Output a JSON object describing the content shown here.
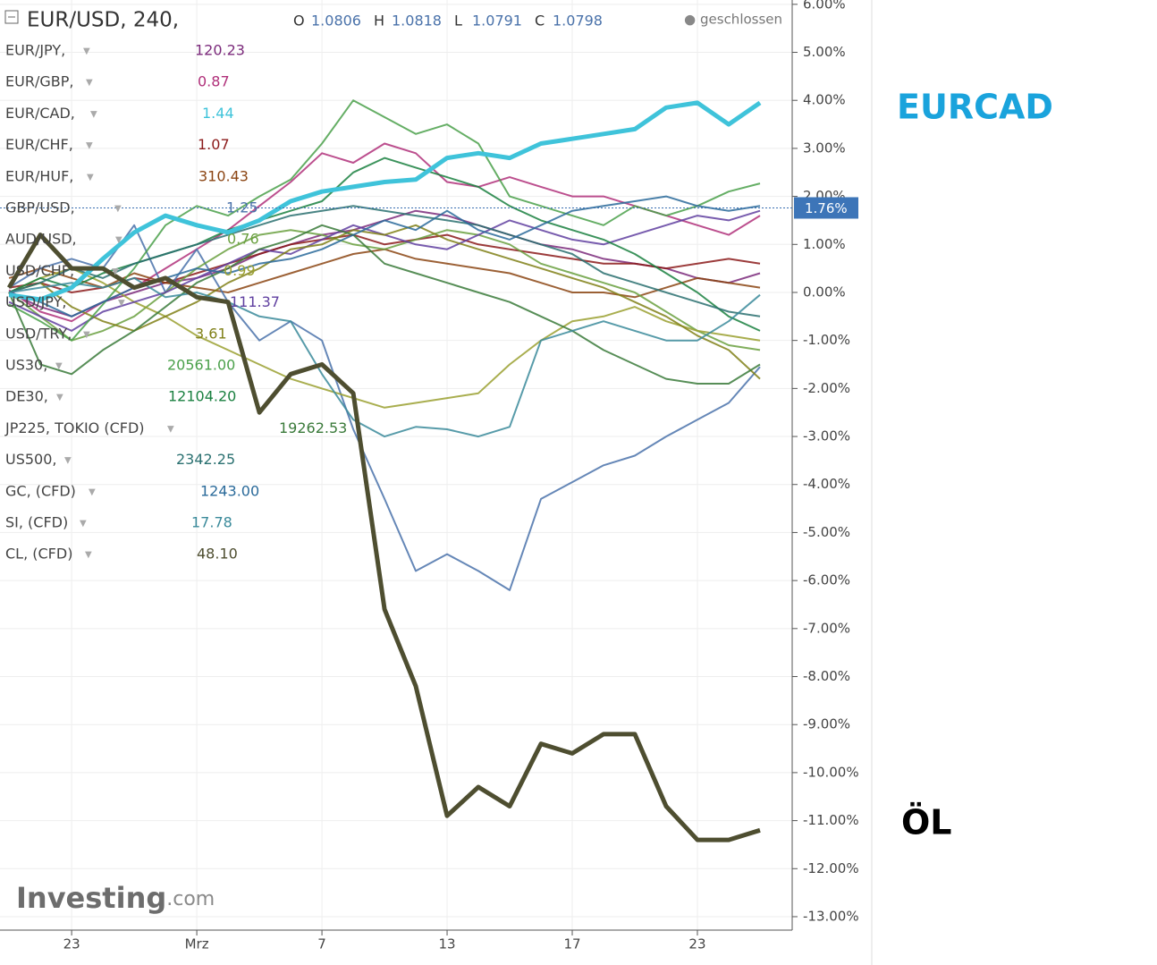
{
  "chart_data": {
    "type": "line",
    "header": {
      "symbol": "EUR/USD, 240,",
      "ohlc": [
        {
          "label": "O",
          "value": "1.0806"
        },
        {
          "label": "H",
          "value": "1.0818"
        },
        {
          "label": "L",
          "value": "1.0791"
        },
        {
          "label": "C",
          "value": "1.0798"
        }
      ],
      "status": "geschlossen"
    },
    "x": [
      -2,
      -1,
      0,
      1,
      2,
      3,
      4,
      5,
      6,
      7,
      8,
      9,
      10,
      11,
      12,
      13,
      14,
      15,
      16,
      17,
      18,
      19,
      20,
      21,
      22
    ],
    "xlim": [
      -2.29,
      23.03
    ],
    "xticks": [
      {
        "value": 0,
        "label": "23"
      },
      {
        "value": 4,
        "label": "Mrz"
      },
      {
        "value": 8,
        "label": "7"
      },
      {
        "value": 12,
        "label": "13"
      },
      {
        "value": 16,
        "label": "17"
      },
      {
        "value": 20,
        "label": "23"
      }
    ],
    "ylim": [
      -13.28,
      6.09
    ],
    "yticks": [
      {
        "value": 6,
        "label": "6.00%"
      },
      {
        "value": 5,
        "label": "5.00%"
      },
      {
        "value": 4,
        "label": "4.00%"
      },
      {
        "value": 3,
        "label": "3.00%"
      },
      {
        "value": 2,
        "label": "2.00%"
      },
      {
        "value": 1,
        "label": "1.00%"
      },
      {
        "value": 0,
        "label": "0.00%"
      },
      {
        "value": -1,
        "label": "-1.00%"
      },
      {
        "value": -2,
        "label": "-2.00%"
      },
      {
        "value": -3,
        "label": "-3.00%"
      },
      {
        "value": -4,
        "label": "-4.00%"
      },
      {
        "value": -5,
        "label": "-5.00%"
      },
      {
        "value": -6,
        "label": "-6.00%"
      },
      {
        "value": -7,
        "label": "-7.00%"
      },
      {
        "value": -8,
        "label": "-8.00%"
      },
      {
        "value": -9,
        "label": "-9.00%"
      },
      {
        "value": -10,
        "label": "-10.00%"
      },
      {
        "value": -11,
        "label": "-11.00%"
      },
      {
        "value": -12,
        "label": "-12.00%"
      },
      {
        "value": -13,
        "label": "-13.00%"
      }
    ],
    "grid": true,
    "current": {
      "value": 1.76,
      "label": "1.76%"
    },
    "annotations": [
      {
        "text": "EURCAD",
        "color": "#1aa3dc"
      },
      {
        "text": "ÖL",
        "color": "#000000"
      }
    ],
    "watermark": [
      "Investing",
      ".com"
    ],
    "series": [
      {
        "name": "EUR/JPY,",
        "last": "120.23",
        "color": "#7b2a7b",
        "values": [
          0,
          -0.3,
          -0.5,
          -0.2,
          0,
          0.2,
          0.3,
          0.5,
          0.8,
          1.0,
          1.2,
          1.3,
          1.5,
          1.7,
          1.6,
          1.4,
          1.2,
          1.0,
          0.9,
          0.7,
          0.6,
          0.5,
          0.3,
          0.2,
          0.4
        ]
      },
      {
        "name": "EUR/GBP,",
        "last": "0.87",
        "color": "#b0307a",
        "values": [
          0.05,
          -0.4,
          -0.6,
          -0.2,
          0.1,
          0.5,
          0.9,
          1.3,
          1.8,
          2.3,
          2.9,
          2.7,
          3.1,
          2.9,
          2.3,
          2.2,
          2.4,
          2.2,
          2.0,
          2.0,
          1.8,
          1.6,
          1.4,
          1.2,
          1.6
        ]
      },
      {
        "name": "EUR/CAD,",
        "last": "1.44",
        "color": "#3fc3da",
        "values": [
          -0.05,
          -0.15,
          0.1,
          0.7,
          1.25,
          1.6,
          1.4,
          1.25,
          1.5,
          1.9,
          2.1,
          2.2,
          2.3,
          2.35,
          2.8,
          2.9,
          2.8,
          3.1,
          3.2,
          3.3,
          3.4,
          3.85,
          3.95,
          3.5,
          3.95
        ]
      },
      {
        "name": "EUR/CHF,",
        "last": "1.07",
        "color": "#8b1a1a",
        "values": [
          0.1,
          0.2,
          0,
          0.1,
          0.3,
          0.2,
          0.4,
          0.6,
          0.8,
          1.0,
          1.1,
          1.2,
          1.0,
          1.1,
          1.2,
          1.0,
          0.9,
          0.8,
          0.7,
          0.6,
          0.6,
          0.5,
          0.6,
          0.7,
          0.6
        ]
      },
      {
        "name": "EUR/HUF,",
        "last": "310.43",
        "color": "#8b4513",
        "values": [
          0.3,
          0.5,
          0.3,
          0.1,
          0.4,
          0.2,
          0.1,
          0,
          0.2,
          0.4,
          0.6,
          0.8,
          0.9,
          0.7,
          0.6,
          0.5,
          0.4,
          0.2,
          0,
          0,
          -0.1,
          0.1,
          0.3,
          0.2,
          0.1
        ]
      },
      {
        "name": "GBP/USD,",
        "last": "1.25",
        "color": "#4a72aa",
        "values": [
          0.1,
          0.5,
          0.7,
          0.5,
          1.4,
          0,
          0.9,
          -0.2,
          -1.0,
          -0.6,
          -1.0,
          -2.85,
          -4.3,
          -5.8,
          -5.45,
          -5.8,
          -6.2,
          -4.3,
          -3.95,
          -3.6,
          -3.4,
          -3.0,
          -2.65,
          -2.3,
          -1.55
        ]
      },
      {
        "name": "AUD/USD,",
        "last": "0.76",
        "color": "#6aa040",
        "values": [
          0,
          -0.5,
          -1.0,
          -0.8,
          -0.5,
          0,
          0.5,
          0.9,
          1.2,
          1.3,
          1.2,
          1.0,
          0.9,
          1.1,
          1.3,
          1.2,
          1.0,
          0.6,
          0.4,
          0.2,
          0,
          -0.4,
          -0.8,
          -1.1,
          -1.2
        ]
      },
      {
        "name": "USD/CHF,",
        "last": "0.99",
        "color": "#9aa030",
        "values": [
          0,
          0.3,
          0.5,
          0.2,
          -0.2,
          -0.5,
          -0.9,
          -1.2,
          -1.5,
          -1.8,
          -2.0,
          -2.2,
          -2.4,
          -2.3,
          -2.2,
          -2.1,
          -1.5,
          -1.0,
          -0.6,
          -0.5,
          -0.3,
          -0.6,
          -0.8,
          -0.9,
          -1.0
        ]
      },
      {
        "name": "USD/JPY,",
        "last": "111.37",
        "color": "#6040a0",
        "values": [
          -0.2,
          -0.5,
          -0.8,
          -0.4,
          -0.2,
          0,
          0.3,
          0.6,
          0.9,
          0.8,
          1.1,
          1.4,
          1.2,
          1.0,
          0.9,
          1.2,
          1.5,
          1.3,
          1.1,
          1.0,
          1.2,
          1.4,
          1.6,
          1.5,
          1.7
        ]
      },
      {
        "name": "USD/TRY,",
        "last": "3.61",
        "color": "#808018",
        "values": [
          0,
          0.2,
          -0.3,
          -0.6,
          -0.8,
          -0.5,
          -0.2,
          0.2,
          0.5,
          0.9,
          1.0,
          1.3,
          1.2,
          1.4,
          1.1,
          0.9,
          0.7,
          0.5,
          0.3,
          0.1,
          -0.2,
          -0.5,
          -0.9,
          -1.2,
          -1.8
        ]
      },
      {
        "name": "US30,",
        "last": "20561.00",
        "color": "#4aa04a",
        "values": [
          -0.25,
          -0.6,
          -1.0,
          -0.25,
          0.5,
          1.4,
          1.8,
          1.6,
          2.0,
          2.35,
          3.1,
          4.0,
          3.65,
          3.3,
          3.5,
          3.1,
          2.0,
          1.8,
          1.6,
          1.4,
          1.8,
          1.6,
          1.8,
          2.1,
          2.27
        ]
      },
      {
        "name": "DE30,",
        "last": "12104.20",
        "color": "#1a8040",
        "values": [
          0,
          0.3,
          0.1,
          0.4,
          0.6,
          0.8,
          1.0,
          1.3,
          1.5,
          1.7,
          1.9,
          2.5,
          2.8,
          2.6,
          2.4,
          2.2,
          1.8,
          1.5,
          1.3,
          1.1,
          0.8,
          0.4,
          0.0,
          -0.5,
          -0.8
        ]
      },
      {
        "name": "JP225, TOKIO (CFD)",
        "last": "19262.53",
        "color": "#3a7a3a",
        "values": [
          0,
          -1.5,
          -1.7,
          -1.2,
          -0.8,
          -0.3,
          0.2,
          0.5,
          0.9,
          1.1,
          1.4,
          1.2,
          0.6,
          0.4,
          0.2,
          0,
          -0.2,
          -0.5,
          -0.8,
          -1.2,
          -1.5,
          -1.8,
          -1.9,
          -1.9,
          -1.5
        ]
      },
      {
        "name": "US500,",
        "last": "2342.25",
        "color": "#2a7070",
        "values": [
          0,
          0.2,
          0.5,
          0.3,
          0.6,
          0.8,
          1.0,
          1.2,
          1.4,
          1.6,
          1.7,
          1.8,
          1.7,
          1.6,
          1.5,
          1.4,
          1.2,
          1.0,
          0.8,
          0.4,
          0.2,
          0,
          -0.2,
          -0.4,
          -0.5
        ]
      },
      {
        "name": "GC, (CFD)",
        "last": "1243.00",
        "color": "#2a6a9a",
        "values": [
          0,
          -0.2,
          -0.5,
          -0.2,
          0.1,
          0.3,
          0.5,
          0.4,
          0.6,
          0.7,
          0.9,
          1.2,
          1.5,
          1.3,
          1.7,
          1.3,
          1.1,
          1.4,
          1.7,
          1.8,
          1.9,
          2.0,
          1.8,
          1.7,
          1.8
        ]
      },
      {
        "name": "SI, (CFD)",
        "last": "17.78",
        "color": "#3a8a9a",
        "values": [
          0,
          0.1,
          0.2,
          0.1,
          0.3,
          -0.1,
          0,
          -0.2,
          -0.5,
          -0.6,
          -1.7,
          -2.65,
          -3.0,
          -2.8,
          -2.85,
          -3.0,
          -2.8,
          -1.0,
          -0.8,
          -0.6,
          -0.8,
          -1.0,
          -1.0,
          -0.6,
          -0.05
        ]
      },
      {
        "name": "CL, (CFD)",
        "last": "48.10",
        "color": "#4e4e30",
        "values": [
          0.1,
          1.2,
          0.5,
          0.5,
          0.1,
          0.3,
          -0.1,
          -0.2,
          -2.5,
          -1.7,
          -1.5,
          -2.1,
          -6.6,
          -8.2,
          -10.9,
          -10.3,
          -10.7,
          -9.4,
          -9.6,
          -9.2,
          -9.2,
          -10.7,
          -11.4,
          -11.4,
          -11.2
        ]
      }
    ]
  }
}
